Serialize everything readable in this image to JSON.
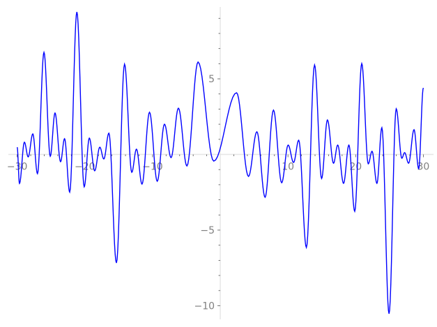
{
  "chart_data": {
    "type": "line",
    "title": "",
    "xlabel": "",
    "ylabel": "",
    "xlim": [
      -31.3,
      31.5
    ],
    "ylim": [
      -10.9,
      9.75
    ],
    "grid": false,
    "line_color": "#0000ff",
    "axis_color": "#e6e6e6",
    "tick_label_color": "#808080",
    "x_ticks": [
      -30,
      -20,
      -10,
      10,
      20,
      30
    ],
    "x_tick_labels": [
      "−30",
      "−20",
      "−10",
      "10",
      "20",
      "30"
    ],
    "y_ticks": [
      5,
      -5,
      -10
    ],
    "y_tick_labels": [
      "5",
      "−5",
      "−10"
    ],
    "x_minor_step": 2,
    "y_minor_step": 1,
    "series": [
      {
        "x": [
          -30.0,
          -29.66,
          -28.93,
          -28.37,
          -27.69,
          -27.0,
          -26.04,
          -25.11,
          -24.41,
          -23.59,
          -23.0,
          -22.24,
          -21.18,
          -20.1,
          -19.34,
          -18.55,
          -17.79,
          -17.2,
          -16.45,
          -15.34,
          -14.14,
          -13.07,
          -12.38,
          -11.56,
          -10.45,
          -9.31,
          -8.24,
          -7.27,
          -6.18,
          -4.93,
          -3.28,
          -0.96,
          2.41,
          4.17,
          5.41,
          6.62,
          7.86,
          9.07,
          10.03,
          10.83,
          11.59,
          12.72,
          13.93,
          14.97,
          15.83,
          16.73,
          17.35,
          18.21,
          19.0,
          19.86,
          20.9,
          21.86,
          22.42,
          23.14,
          23.87,
          24.93,
          25.99,
          26.82,
          27.23,
          27.82,
          28.62,
          29.31,
          30.0
        ],
        "y": [
          0.48,
          -1.92,
          0.81,
          -0.16,
          1.36,
          -1.27,
          6.75,
          -0.12,
          2.74,
          -0.48,
          1.04,
          -2.49,
          9.42,
          -2.14,
          1.08,
          -1.08,
          0.48,
          -0.3,
          1.41,
          -7.17,
          5.97,
          -1.18,
          0.35,
          -1.96,
          2.79,
          -1.77,
          2.0,
          -0.21,
          3.06,
          -0.76,
          6.11,
          -0.44,
          4.08,
          -1.45,
          1.5,
          -2.83,
          2.93,
          -1.87,
          0.62,
          -0.53,
          0.94,
          -6.15,
          5.92,
          -1.59,
          2.28,
          -0.58,
          0.62,
          -1.91,
          0.62,
          -3.76,
          6.01,
          -0.62,
          0.21,
          -1.91,
          1.77,
          -10.53,
          3.02,
          -0.25,
          0.12,
          -0.58,
          1.64,
          -0.94,
          4.4
        ]
      }
    ]
  }
}
